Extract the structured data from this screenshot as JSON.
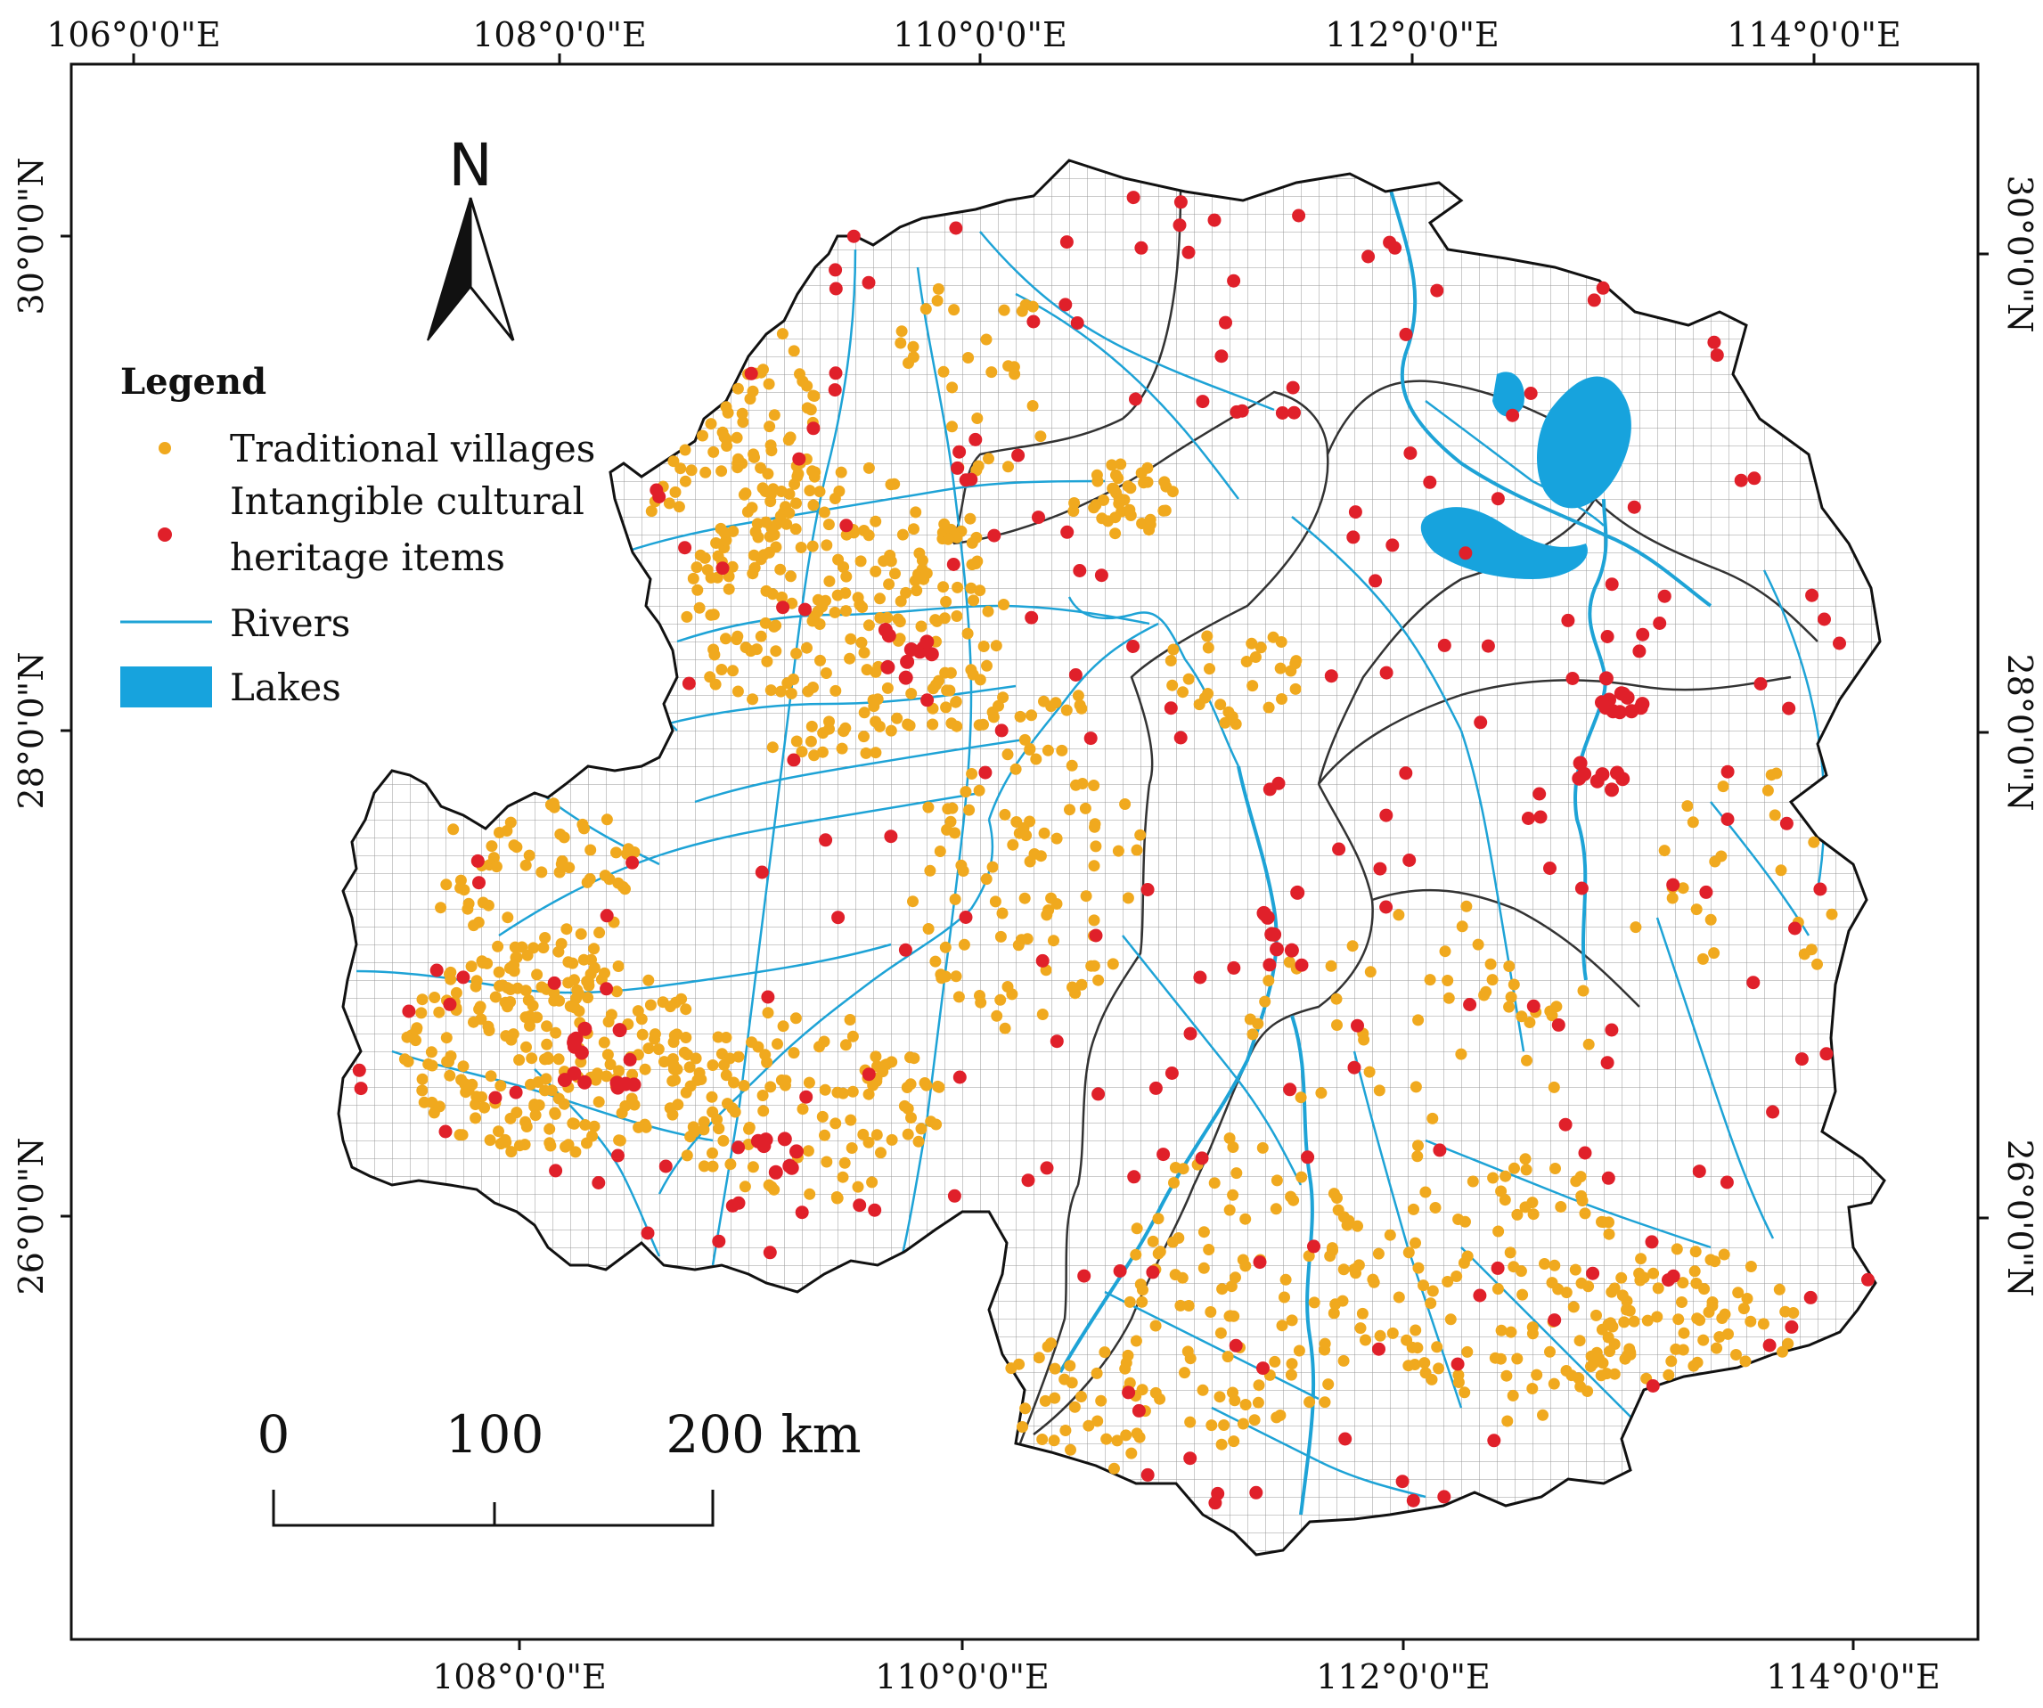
{
  "map": {
    "top_lon_labels": [
      "106°0'0\"E",
      "108°0'0\"E",
      "110°0'0\"E",
      "112°0'0\"E",
      "114°0'0\"E"
    ],
    "bottom_lon_labels": [
      "108°0'0\"E",
      "110°0'0\"E",
      "112°0'0\"E",
      "114°0'0\"E"
    ],
    "left_lat_labels": [
      "30°0'0\"N",
      "28°0'0\"N",
      "26°0'0\"N"
    ],
    "right_lat_labels": [
      "30°0'0\"N",
      "28°0'0\"N",
      "26°0'0\"N"
    ]
  },
  "north_arrow": {
    "label": "N"
  },
  "legend": {
    "title": "Legend",
    "items": [
      {
        "label": "Traditional villages",
        "color": "#f0a91e"
      },
      {
        "label_line1": "Intangible cultural",
        "label_line2": "heritage items",
        "color": "#e0202a"
      },
      {
        "label": "Rivers",
        "color": "#1ea3d6"
      },
      {
        "label": "Lakes",
        "color": "#17a3dd"
      }
    ]
  },
  "scale_bar": {
    "labels": [
      "0",
      "100",
      "200 km"
    ]
  },
  "colors": {
    "village": "#f0a91e",
    "heritage": "#e0202a",
    "river": "#1ea3d6",
    "lake": "#17a3dd",
    "grid": "#8f8f8f",
    "boundary": "#111111"
  }
}
